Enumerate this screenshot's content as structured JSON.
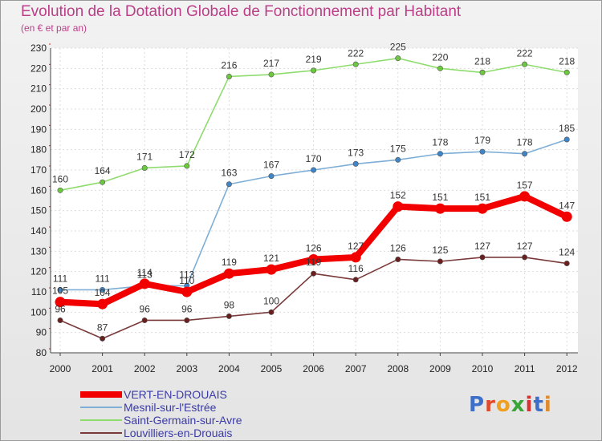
{
  "title": "Evolution de la Dotation Globale de Fonctionnement par Habitant",
  "subtitle": "(en € et par an)",
  "logo": {
    "text": "Proxiti",
    "letter_colors": [
      "#3d6fc9",
      "#e04a2a",
      "#f0a020",
      "#3aa33a",
      "#d93030",
      "#3d6fc9",
      "#e08a2a"
    ]
  },
  "chart_data": {
    "type": "line",
    "title": "Evolution de la Dotation Globale de Fonctionnement par Habitant",
    "subtitle": "(en € et par an)",
    "x": [
      "2000",
      "2001",
      "2002",
      "2003",
      "2004",
      "2005",
      "2006",
      "2007",
      "2008",
      "2009",
      "2010",
      "2011",
      "2012"
    ],
    "ylim": [
      80,
      230
    ],
    "yticks": [
      "80",
      "90",
      "100",
      "110",
      "120",
      "130",
      "140",
      "150",
      "160",
      "170",
      "180",
      "190",
      "200",
      "210",
      "220",
      "230"
    ],
    "grid": true,
    "legend_position": "bottom-left",
    "series": [
      {
        "name": "Saint-Germain-sur-Avre",
        "color": "#8fdc6e",
        "marker": "#6cc83e",
        "emphasis": false,
        "values": [
          160,
          164,
          171,
          172,
          216,
          217,
          219,
          222,
          225,
          220,
          218,
          222,
          218
        ],
        "labels": [
          "160",
          "164",
          "171",
          "172",
          "216",
          "217",
          "219",
          "222",
          "225",
          "220",
          "218",
          "222",
          "218"
        ]
      },
      {
        "name": "Mesnil-sur-l'Estrée",
        "color": "#7eaed6",
        "marker": "#3f86c8",
        "emphasis": false,
        "values": [
          111,
          111,
          113,
          113,
          163,
          167,
          170,
          173,
          175,
          178,
          179,
          178,
          185
        ],
        "labels": [
          "111",
          "111",
          "113",
          "113",
          "163",
          "167",
          "170",
          "173",
          "175",
          "178",
          "179",
          "178",
          "185"
        ]
      },
      {
        "name": "Louvilliers-en-Drouais",
        "color": "#7a3a3a",
        "marker": "#6a1f1f",
        "emphasis": false,
        "values": [
          96,
          87,
          96,
          96,
          98,
          100,
          119,
          116,
          126,
          125,
          127,
          127,
          124
        ],
        "labels": [
          "96",
          "87",
          "96",
          "96",
          "98",
          "100",
          "119",
          "116",
          "126",
          "125",
          "127",
          "127",
          "124"
        ]
      },
      {
        "name": "VERT-EN-DROUAIS",
        "color": "#f20000",
        "marker": "#f20000",
        "emphasis": true,
        "values": [
          105,
          104,
          114,
          110,
          119,
          121,
          126,
          127,
          152,
          151,
          151,
          157,
          147
        ],
        "labels": [
          "105",
          "104",
          "114",
          "110",
          "119",
          "121",
          "126",
          "127",
          "152",
          "151",
          "151",
          "157",
          "147"
        ]
      }
    ],
    "legend": [
      {
        "name": "VERT-EN-DROUAIS",
        "color": "#f20000",
        "thickness": 8
      },
      {
        "name": "Mesnil-sur-l'Estrée",
        "color": "#7eaed6",
        "thickness": 2
      },
      {
        "name": "Saint-Germain-sur-Avre",
        "color": "#8fdc6e",
        "thickness": 2
      },
      {
        "name": "Louvilliers-en-Drouais",
        "color": "#7a3a3a",
        "thickness": 2
      }
    ]
  }
}
